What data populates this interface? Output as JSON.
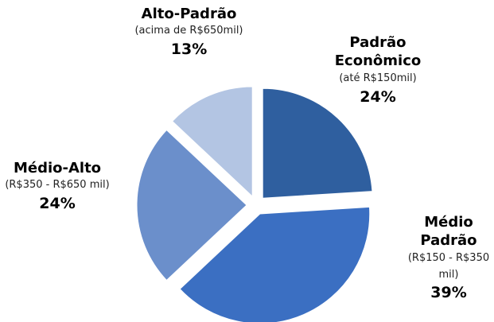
{
  "chart_data": {
    "type": "pie",
    "categories": [
      "Padrão Econômico",
      "Médio Padrão",
      "Médio-Alto",
      "Alto-Padrão"
    ],
    "descriptions": [
      "(até R$150mil)",
      "(R$150 - R$350 mil)",
      "(R$350 - R$650 mil)",
      "(acima de R$650mil)"
    ],
    "values": [
      24,
      39,
      24,
      13
    ],
    "value_labels": [
      "24%",
      "39%",
      "24%",
      "13%"
    ],
    "colors": [
      "#2f5f9f",
      "#3b6fc2",
      "#6b8fcb",
      "#b3c5e3"
    ]
  }
}
